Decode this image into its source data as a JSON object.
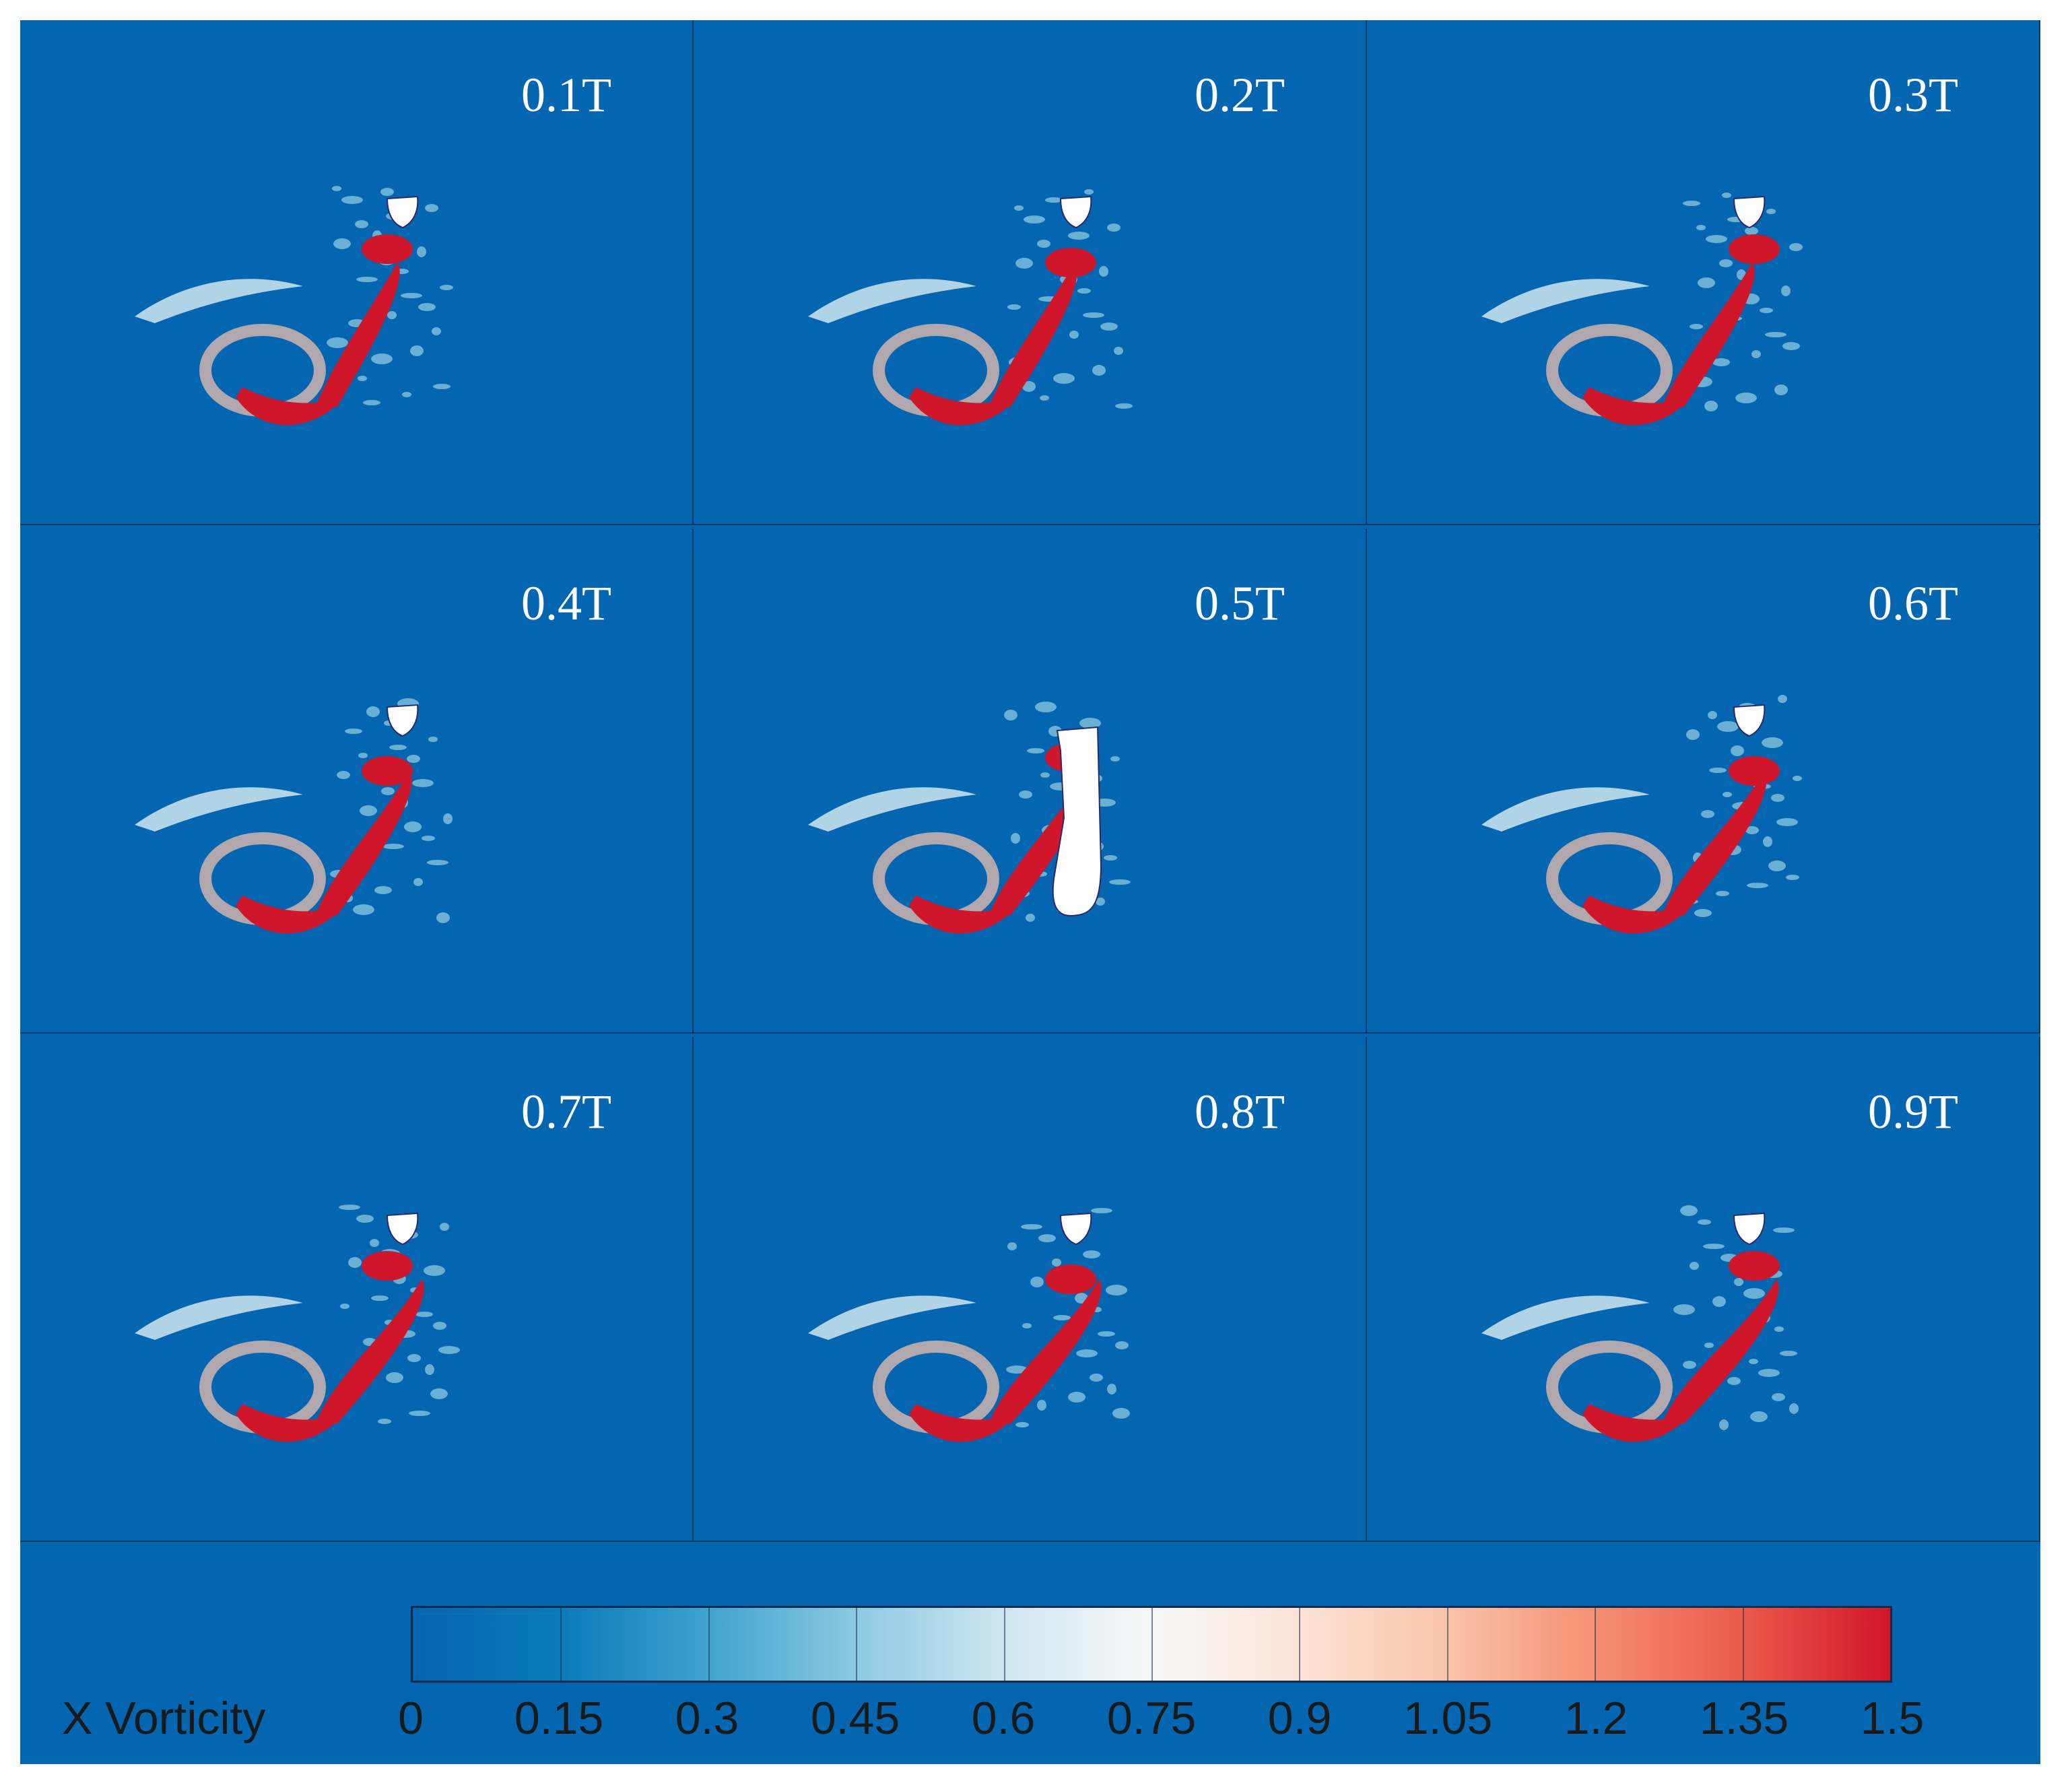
{
  "panels": [
    {
      "label": "0.1T"
    },
    {
      "label": "0.2T"
    },
    {
      "label": "0.3T"
    },
    {
      "label": "0.4T"
    },
    {
      "label": "0.5T"
    },
    {
      "label": "0.6T"
    },
    {
      "label": "0.7T"
    },
    {
      "label": "0.8T"
    },
    {
      "label": "0.9T"
    }
  ],
  "colorbar": {
    "title": "X Vorticity",
    "ticks": [
      "0",
      "0.15",
      "0.3",
      "0.45",
      "0.6",
      "0.75",
      "0.9",
      "1.05",
      "1.2",
      "1.35",
      "1.5"
    ],
    "range": [
      0,
      1.5
    ],
    "colors": {
      "low": "#0465b1",
      "mid": "#f7f7f7",
      "high": "#d0162a"
    }
  }
}
